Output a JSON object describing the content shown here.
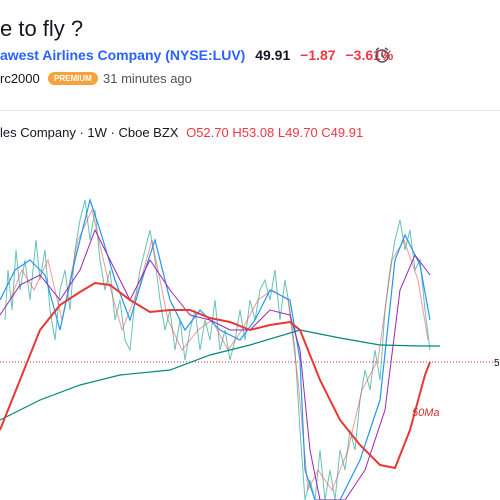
{
  "header": {
    "title": "e to fly ?",
    "symbol_name": "awest Airlines Company",
    "ticker": "(NYSE:LUV)",
    "price": "49.91",
    "change": "−1.87",
    "change_pct": "−3.61%"
  },
  "author": {
    "name": "rc2000",
    "badge": "PREMIUM",
    "time": "31 minutes ago"
  },
  "legend": {
    "symbol": "les Company · 1W · Cboe BZX",
    "open": "O52.70",
    "high": "H53.08",
    "low": "L49.70",
    "close": "C49.91"
  },
  "annotation": "50Ma",
  "price_label": "5"
}
